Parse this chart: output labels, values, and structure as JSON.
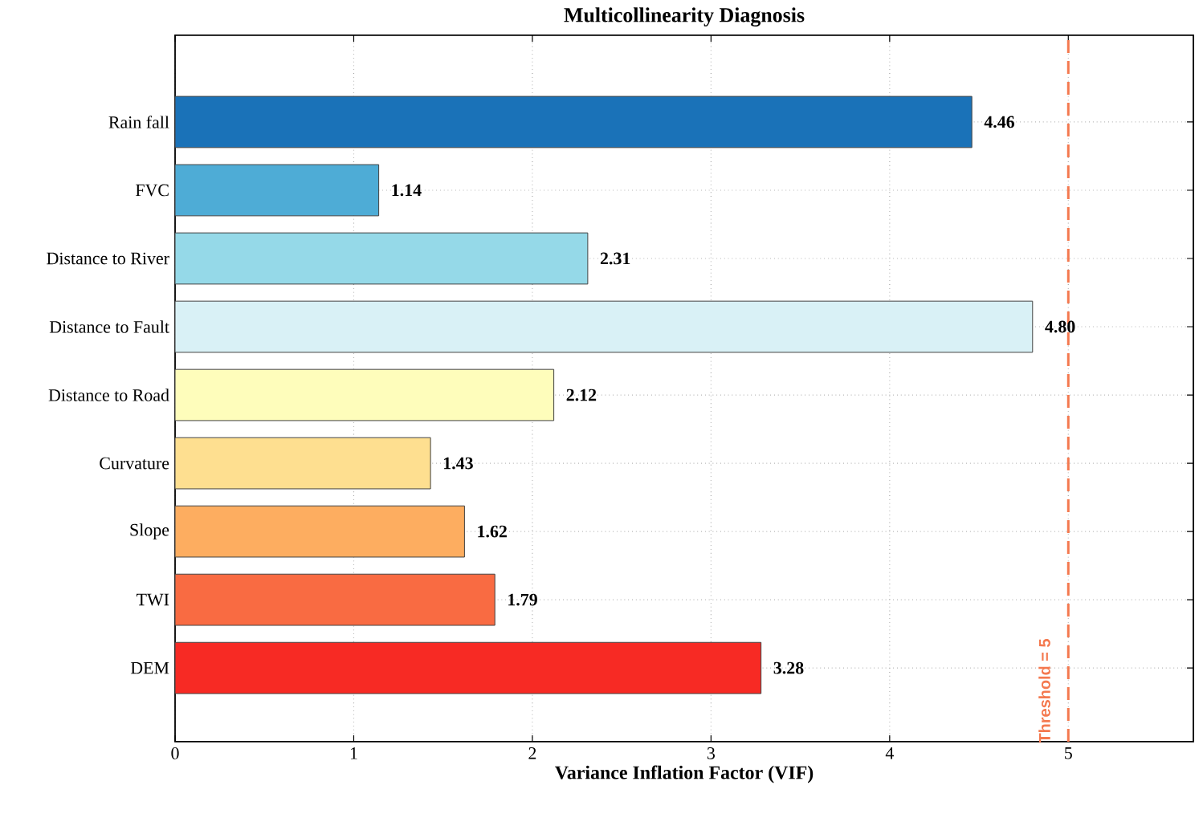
{
  "chart_data": {
    "type": "bar",
    "orientation": "horizontal",
    "title": "Multicollinearity Diagnosis",
    "xlabel": "Variance Inflation Factor (VIF)",
    "categories": [
      "Rain fall",
      "FVC",
      "Distance to River",
      "Distance to Fault",
      "Distance to Road",
      "Curvature",
      "Slope",
      "TWI",
      "DEM"
    ],
    "values": [
      4.46,
      1.14,
      2.31,
      4.8,
      2.12,
      1.43,
      1.62,
      1.79,
      3.28
    ],
    "colors": [
      "#1a72b8",
      "#4eacd6",
      "#95d9e8",
      "#d9f1f6",
      "#fefdbb",
      "#fedf90",
      "#fdad60",
      "#f96b42",
      "#f72a24"
    ],
    "xlim": [
      0,
      5.7
    ],
    "xticks": [
      0,
      1,
      2,
      3,
      4,
      5
    ],
    "grid": true,
    "value_labels": [
      "4.46",
      "1.14",
      "2.31",
      "4.80",
      "2.12",
      "1.43",
      "1.62",
      "1.79",
      "3.28"
    ],
    "ref_lines": [
      {
        "axis": "x",
        "value": 5,
        "label": "Threshold = 5",
        "color": "#f4794f",
        "line_style": "dashed"
      }
    ]
  }
}
